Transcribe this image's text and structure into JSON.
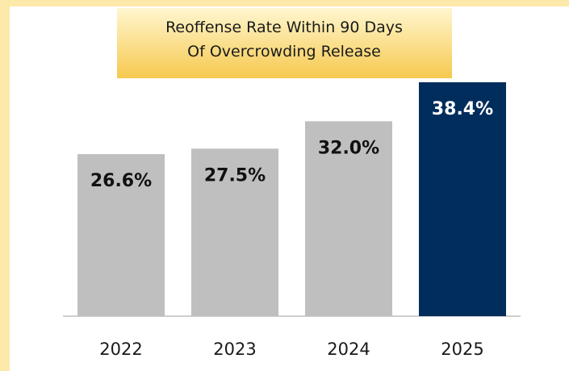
{
  "chart_data": {
    "type": "bar",
    "title": [
      "Reoffense Rate Within 90 Days",
      "Of Overcrowding Release"
    ],
    "categories": [
      "2022",
      "2023",
      "2024",
      "2025"
    ],
    "values": [
      26.6,
      27.5,
      32.0,
      38.4
    ],
    "value_labels": [
      "26.6%",
      "27.5%",
      "32.0%",
      "38.4%"
    ],
    "colors": [
      "#bfbfbf",
      "#bfbfbf",
      "#bfbfbf",
      "#002d5c"
    ],
    "label_colors": [
      "#111111",
      "#111111",
      "#111111",
      "#ffffff"
    ]
  }
}
